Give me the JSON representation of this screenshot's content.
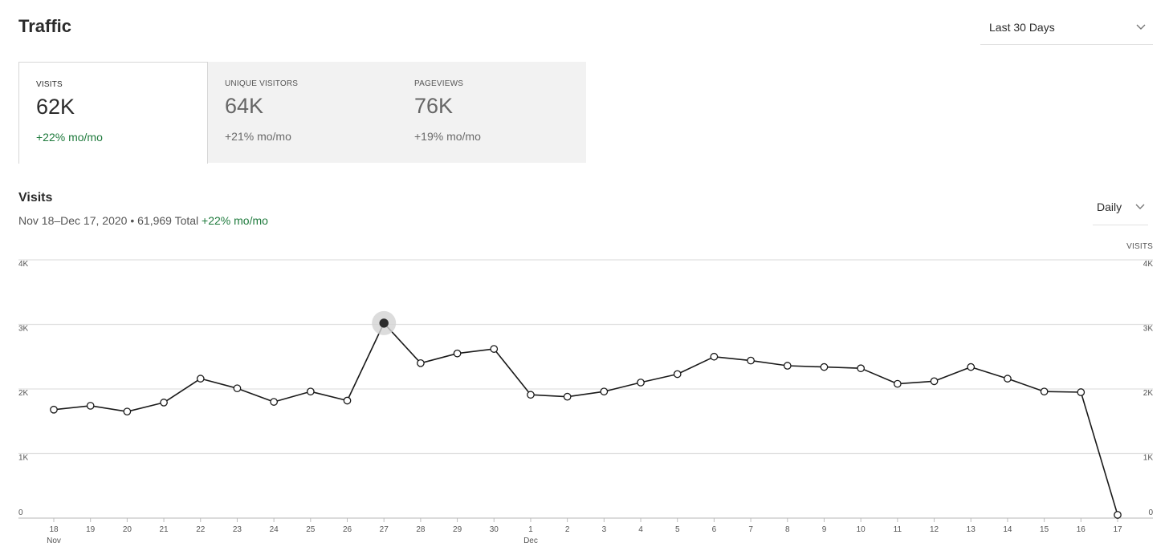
{
  "header": {
    "title": "Traffic",
    "range_label": "Last 30 Days",
    "range_icon": "chevron-down-icon"
  },
  "metrics": [
    {
      "label": "VISITS",
      "value": "62K",
      "change": "+22% mo/mo",
      "active": true
    },
    {
      "label": "UNIQUE VISITORS",
      "value": "64K",
      "change": "+21% mo/mo",
      "active": false
    },
    {
      "label": "PAGEVIEWS",
      "value": "76K",
      "change": "+19% mo/mo",
      "active": false
    }
  ],
  "section": {
    "title": "Visits",
    "date_range": "Nov 18–Dec 17, 2020",
    "separator": "•",
    "total": "61,969 Total",
    "change": "+22% mo/mo",
    "interval_label": "Daily"
  },
  "colors": {
    "positive": "#1e7a3c",
    "line": "#1a1a1a",
    "grid": "#e0e0e0",
    "highlight": "#d3d3d3"
  },
  "chart_data": {
    "type": "line",
    "ylabel": "VISITS",
    "ylim": [
      0,
      4000
    ],
    "yticks": [
      0,
      1000,
      2000,
      3000,
      4000
    ],
    "ytick_labels": [
      "0",
      "1K",
      "2K",
      "3K",
      "4K"
    ],
    "x": [
      "18",
      "19",
      "20",
      "21",
      "22",
      "23",
      "24",
      "25",
      "26",
      "27",
      "28",
      "29",
      "30",
      "1",
      "2",
      "3",
      "4",
      "5",
      "6",
      "7",
      "8",
      "9",
      "10",
      "11",
      "12",
      "13",
      "14",
      "15",
      "16",
      "17"
    ],
    "month_labels": [
      {
        "at": "18",
        "label": "Nov"
      },
      {
        "at": "1",
        "label": "Dec"
      }
    ],
    "series": [
      {
        "values": [
          1680,
          1740,
          1650,
          1790,
          2160,
          2010,
          1800,
          1960,
          1820,
          3020,
          2400,
          2550,
          2620,
          1910,
          1880,
          1960,
          2100,
          2230,
          2500,
          2440,
          2360,
          2340,
          2320,
          2080,
          2120,
          2340,
          2160,
          1960,
          1950,
          50
        ]
      }
    ],
    "highlighted_point": "27",
    "grid": true,
    "dual_y_axis": true
  }
}
